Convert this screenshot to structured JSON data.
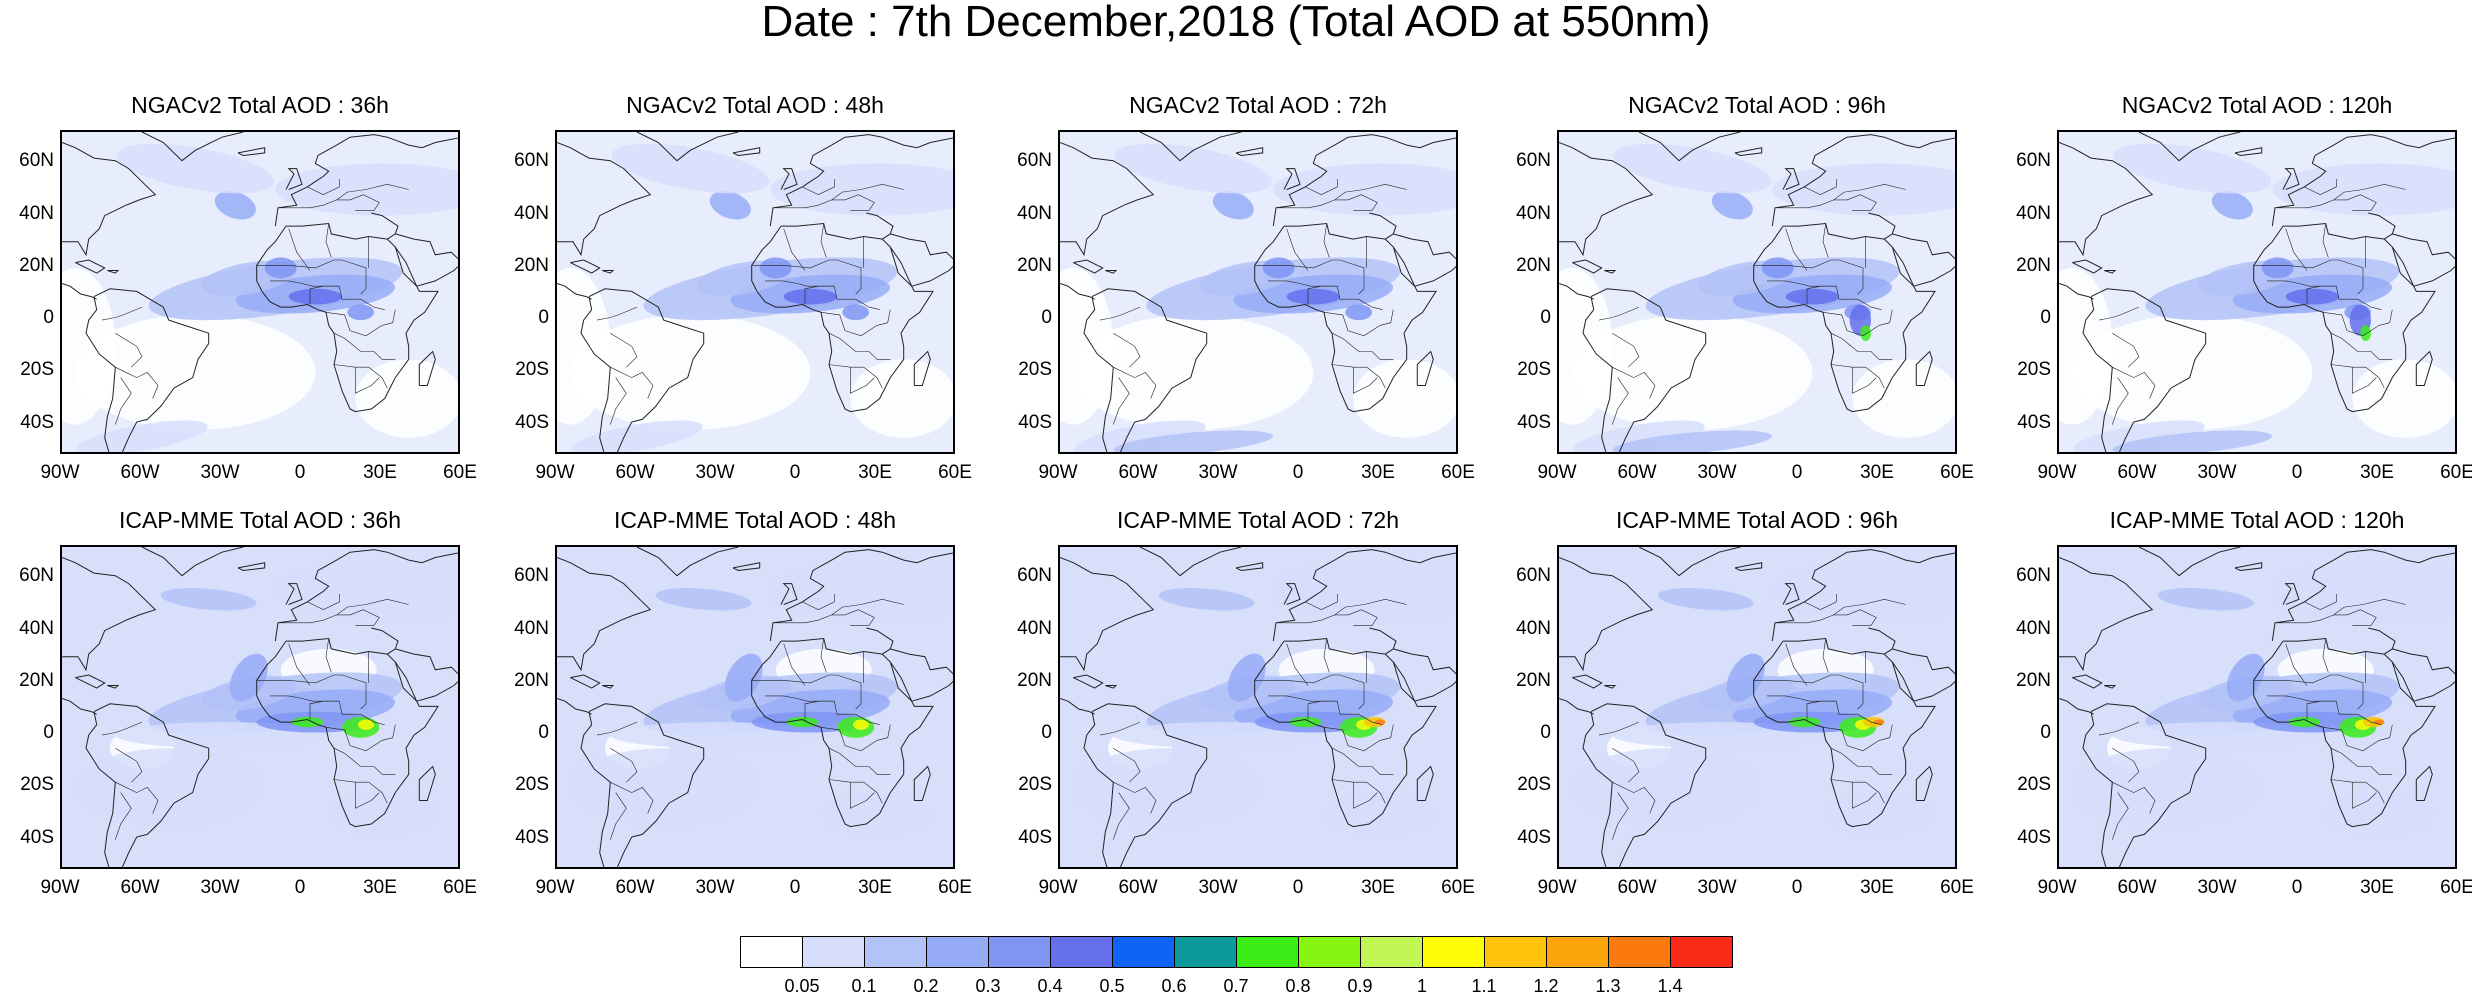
{
  "title": "Date : 7th December,2018 (Total AOD at 550nm)",
  "lat_labels": [
    "60N",
    "40N",
    "20N",
    "0",
    "20S",
    "40S"
  ],
  "lon_labels": [
    "90W",
    "60W",
    "30W",
    "0",
    "30E",
    "60E"
  ],
  "panels": [
    {
      "title": "NGACv2 Total AOD : 36h",
      "model": "NGACv2",
      "lead": "36h"
    },
    {
      "title": "NGACv2 Total AOD : 48h",
      "model": "NGACv2",
      "lead": "48h"
    },
    {
      "title": "NGACv2 Total AOD : 72h",
      "model": "NGACv2",
      "lead": "72h"
    },
    {
      "title": "NGACv2 Total AOD : 96h",
      "model": "NGACv2",
      "lead": "96h"
    },
    {
      "title": "NGACv2 Total AOD : 120h",
      "model": "NGACv2",
      "lead": "120h"
    },
    {
      "title": "ICAP-MME Total AOD : 36h",
      "model": "ICAP-MME",
      "lead": "36h"
    },
    {
      "title": "ICAP-MME Total AOD : 48h",
      "model": "ICAP-MME",
      "lead": "48h"
    },
    {
      "title": "ICAP-MME Total AOD : 72h",
      "model": "ICAP-MME",
      "lead": "72h"
    },
    {
      "title": "ICAP-MME Total AOD : 96h",
      "model": "ICAP-MME",
      "lead": "96h"
    },
    {
      "title": "ICAP-MME Total AOD : 120h",
      "model": "ICAP-MME",
      "lead": "120h"
    }
  ],
  "colorbar": {
    "levels": [
      "0.05",
      "0.1",
      "0.2",
      "0.3",
      "0.4",
      "0.5",
      "0.6",
      "0.7",
      "0.8",
      "0.9",
      "1",
      "1.1",
      "1.2",
      "1.3",
      "1.4"
    ],
    "colors": [
      "#ffffff",
      "#d6defc",
      "#b3c2f7",
      "#96acf7",
      "#7f95f4",
      "#6570ec",
      "#0f64f5",
      "#0d9a9a",
      "#3bec17",
      "#88f411",
      "#c2f654",
      "#fdfd06",
      "#fdc20a",
      "#fca40c",
      "#fb7a10",
      "#fb2a18"
    ]
  }
}
